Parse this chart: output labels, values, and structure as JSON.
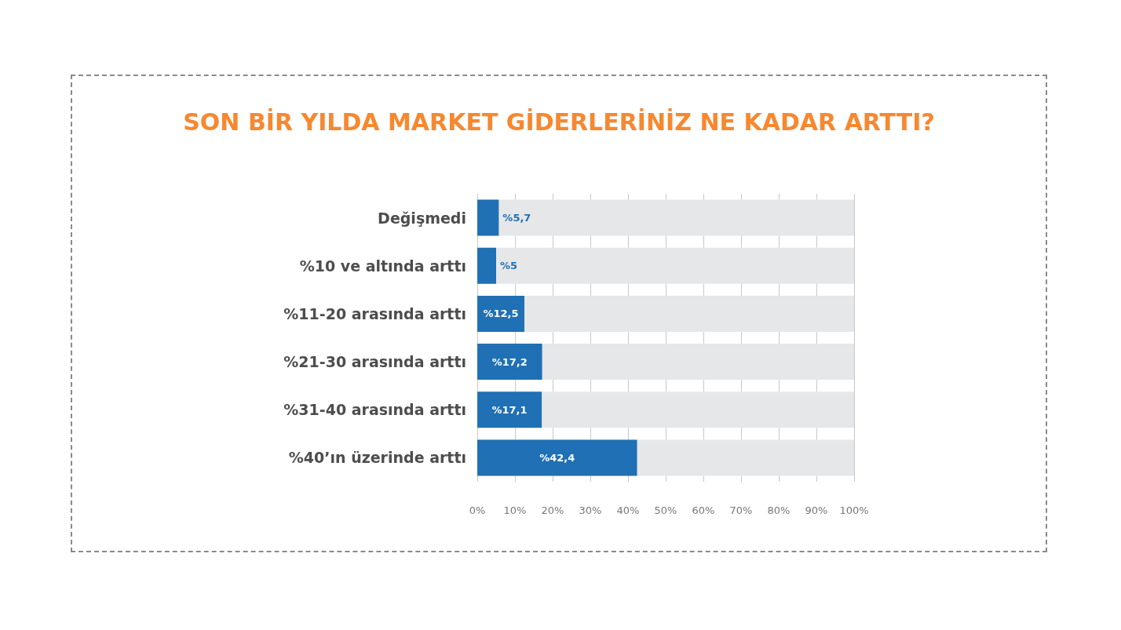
{
  "chart_data": {
    "type": "bar",
    "orientation": "horizontal",
    "title": "SON BİR YILDA MARKET GİDERLERİNİZ NE KADAR ARTTI?",
    "categories": [
      "Değişmedi",
      "%10 ve altında arttı",
      "%11-20 arasında arttı",
      "%21-30 arasında arttı",
      "%31-40 arasında arttı",
      "%40’ın üzerinde arttı"
    ],
    "values": [
      5.7,
      5,
      12.5,
      17.2,
      17.1,
      42.4
    ],
    "value_labels": [
      "%5,7",
      "%5",
      "%12,5",
      "%17,2",
      "%17,1",
      "%42,4"
    ],
    "color": "#1f70b4",
    "xlim": [
      0,
      100
    ],
    "xticks": [
      {
        "value": 0,
        "label": "0%"
      },
      {
        "value": 10,
        "label": "10%"
      },
      {
        "value": 20,
        "label": "20%"
      },
      {
        "value": 30,
        "label": "30%"
      },
      {
        "value": 40,
        "label": "40%"
      },
      {
        "value": 50,
        "label": "50%"
      },
      {
        "value": 60,
        "label": "60%"
      },
      {
        "value": 70,
        "label": "70%"
      },
      {
        "value": 80,
        "label": "80%"
      },
      {
        "value": 90,
        "label": "90%"
      },
      {
        "value": 100,
        "label": "100%"
      }
    ],
    "grid": "x"
  }
}
